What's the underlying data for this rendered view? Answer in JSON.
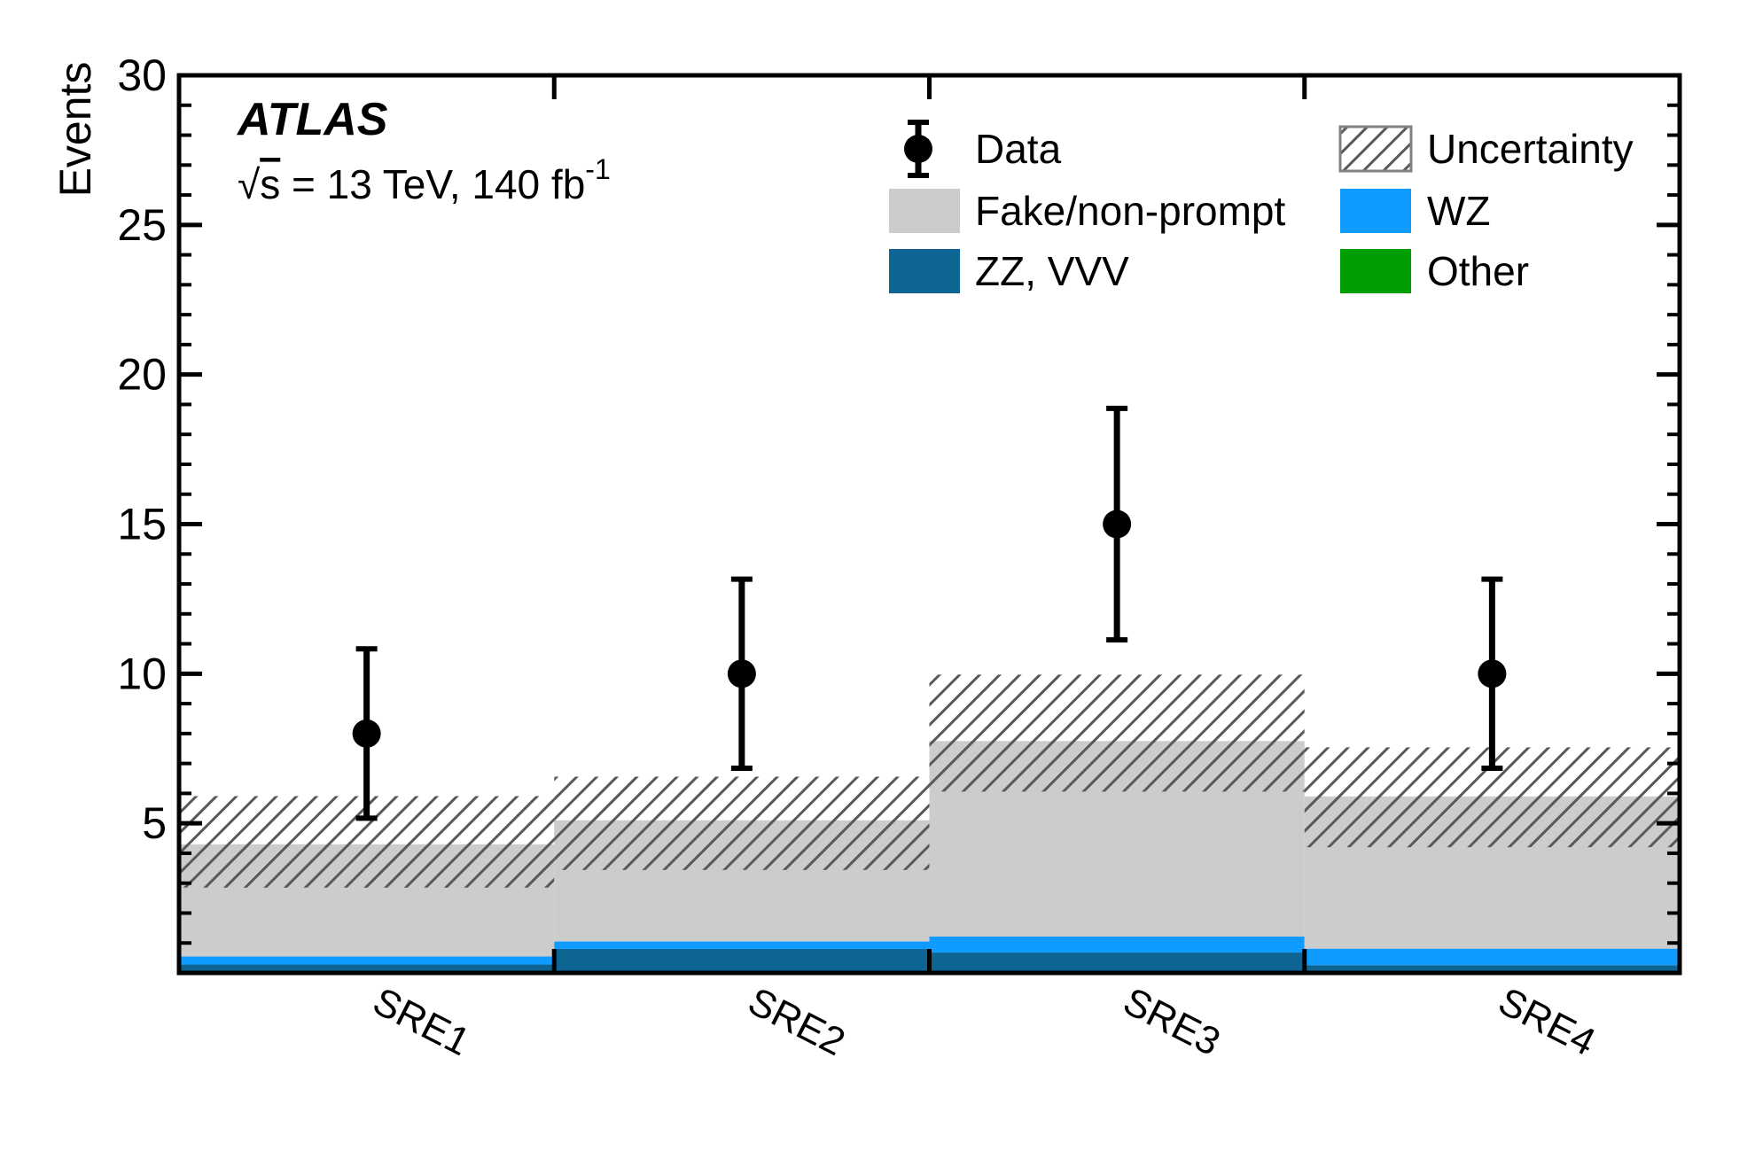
{
  "chart_data": {
    "type": "bar",
    "subtype": "stacked-histogram-with-data-points",
    "categories": [
      "SRE1",
      "SRE2",
      "SRE3",
      "SRE4"
    ],
    "ylabel": "Events",
    "xlabel": "",
    "ylim": [
      0,
      30
    ],
    "yticks": {
      "values": [
        5,
        10,
        15,
        20,
        25,
        30
      ],
      "labels": [
        "5",
        "10",
        "15",
        "20",
        "25",
        "30"
      ],
      "minor_step": 1
    },
    "grid": "off",
    "series": [
      {
        "name": "ZZ, VVV",
        "color": "#0E6492",
        "values": [
          0.28,
          0.8,
          0.68,
          0.26
        ]
      },
      {
        "name": "WZ",
        "color": "#0F9BFF",
        "values": [
          0.27,
          0.25,
          0.54,
          0.55
        ]
      },
      {
        "name": "Fake/non-prompt",
        "color": "#CCCCCC",
        "values": [
          3.75,
          4.05,
          6.53,
          5.09
        ]
      },
      {
        "name": "Other",
        "color": "#009E00",
        "values": [
          0,
          0,
          0,
          0
        ]
      }
    ],
    "stack_totals": [
      4.3,
      5.1,
      7.75,
      5.9
    ],
    "uncertainty_band": [
      {
        "lo": 2.85,
        "hi": 5.91
      },
      {
        "lo": 3.44,
        "hi": 6.56
      },
      {
        "lo": 6.06,
        "hi": 9.97
      },
      {
        "lo": 4.2,
        "hi": 7.54
      }
    ],
    "data_points": {
      "name": "Data",
      "values": [
        8,
        10,
        15,
        10
      ],
      "err_lo": [
        2.83,
        3.16,
        3.87,
        3.16
      ],
      "err_hi": [
        2.83,
        3.16,
        3.87,
        3.16
      ]
    },
    "colors": {
      "data_marker": "#000000",
      "hatch": "#595959",
      "hatch_box_border": "#808080",
      "frame": "#000000",
      "fake": "#CCCCCC",
      "wz": "#0F9BFF",
      "zz_vvv": "#0E6492",
      "other": "#009E00"
    },
    "legend": {
      "position": "top-right-inside",
      "data_label": "Data",
      "uncertainty_label": "Uncertainty",
      "fake_label": "Fake/non-prompt",
      "wz_label": "WZ",
      "zz_label": "ZZ, VVV",
      "other_label": "Other"
    },
    "annotations": {
      "atlas": "ATLAS",
      "sqrt": "√",
      "s": "s",
      "subtitle_rest": " = 13 TeV, 140 fb",
      "subtitle_sup": "-1"
    }
  }
}
